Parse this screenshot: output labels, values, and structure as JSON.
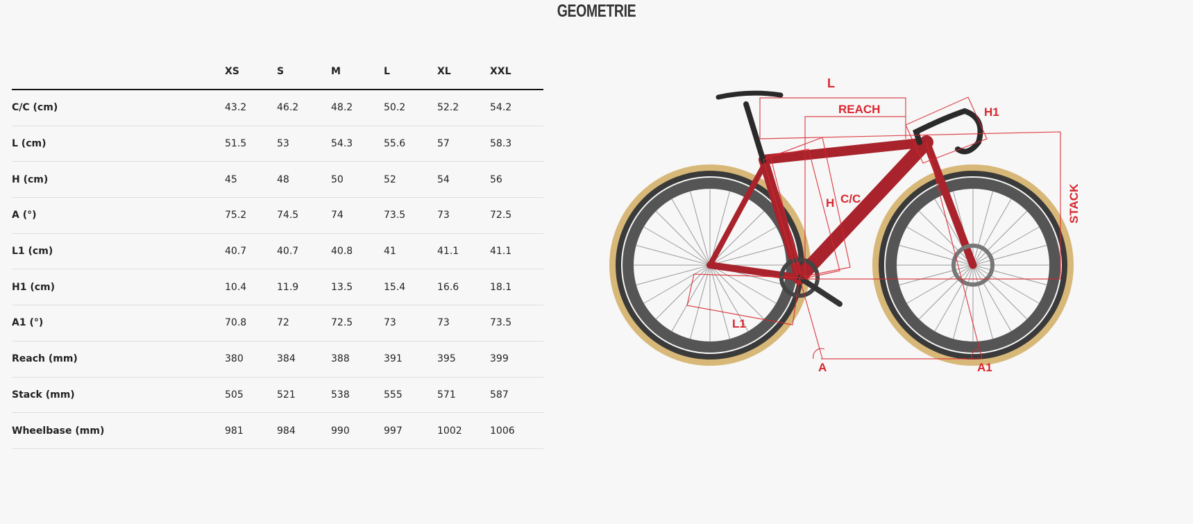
{
  "title": "GEOMETRIE",
  "table": {
    "columns": [
      "XS",
      "S",
      "M",
      "L",
      "XL",
      "XXL"
    ],
    "rows": [
      {
        "label": "C/C (cm)",
        "values": [
          "43.2",
          "46.2",
          "48.2",
          "50.2",
          "52.2",
          "54.2"
        ]
      },
      {
        "label": "L (cm)",
        "values": [
          "51.5",
          "53",
          "54.3",
          "55.6",
          "57",
          "58.3"
        ]
      },
      {
        "label": "H (cm)",
        "values": [
          "45",
          "48",
          "50",
          "52",
          "54",
          "56"
        ]
      },
      {
        "label": "A (°)",
        "values": [
          "75.2",
          "74.5",
          "74",
          "73.5",
          "73",
          "72.5"
        ]
      },
      {
        "label": "L1 (cm)",
        "values": [
          "40.7",
          "40.7",
          "40.8",
          "41",
          "41.1",
          "41.1"
        ]
      },
      {
        "label": "H1 (cm)",
        "values": [
          "10.4",
          "11.9",
          "13.5",
          "15.4",
          "16.6",
          "18.1"
        ]
      },
      {
        "label": "A1 (°)",
        "values": [
          "70.8",
          "72",
          "72.5",
          "73",
          "73",
          "73.5"
        ]
      },
      {
        "label": "Reach (mm)",
        "values": [
          "380",
          "384",
          "388",
          "391",
          "395",
          "399"
        ]
      },
      {
        "label": "Stack (mm)",
        "values": [
          "505",
          "521",
          "538",
          "555",
          "571",
          "587"
        ]
      },
      {
        "label": "Wheelbase (mm)",
        "values": [
          "981",
          "984",
          "990",
          "997",
          "1002",
          "1006"
        ]
      }
    ]
  },
  "diagram": {
    "labels": {
      "l": "L",
      "reach": "REACH",
      "h1": "H1",
      "stack": "STACK",
      "cc": "C/C",
      "h": "H",
      "l1": "L1",
      "a": "A",
      "a1": "A1"
    },
    "accent_color": "#d8262e",
    "frame_color": "#a8232b"
  }
}
